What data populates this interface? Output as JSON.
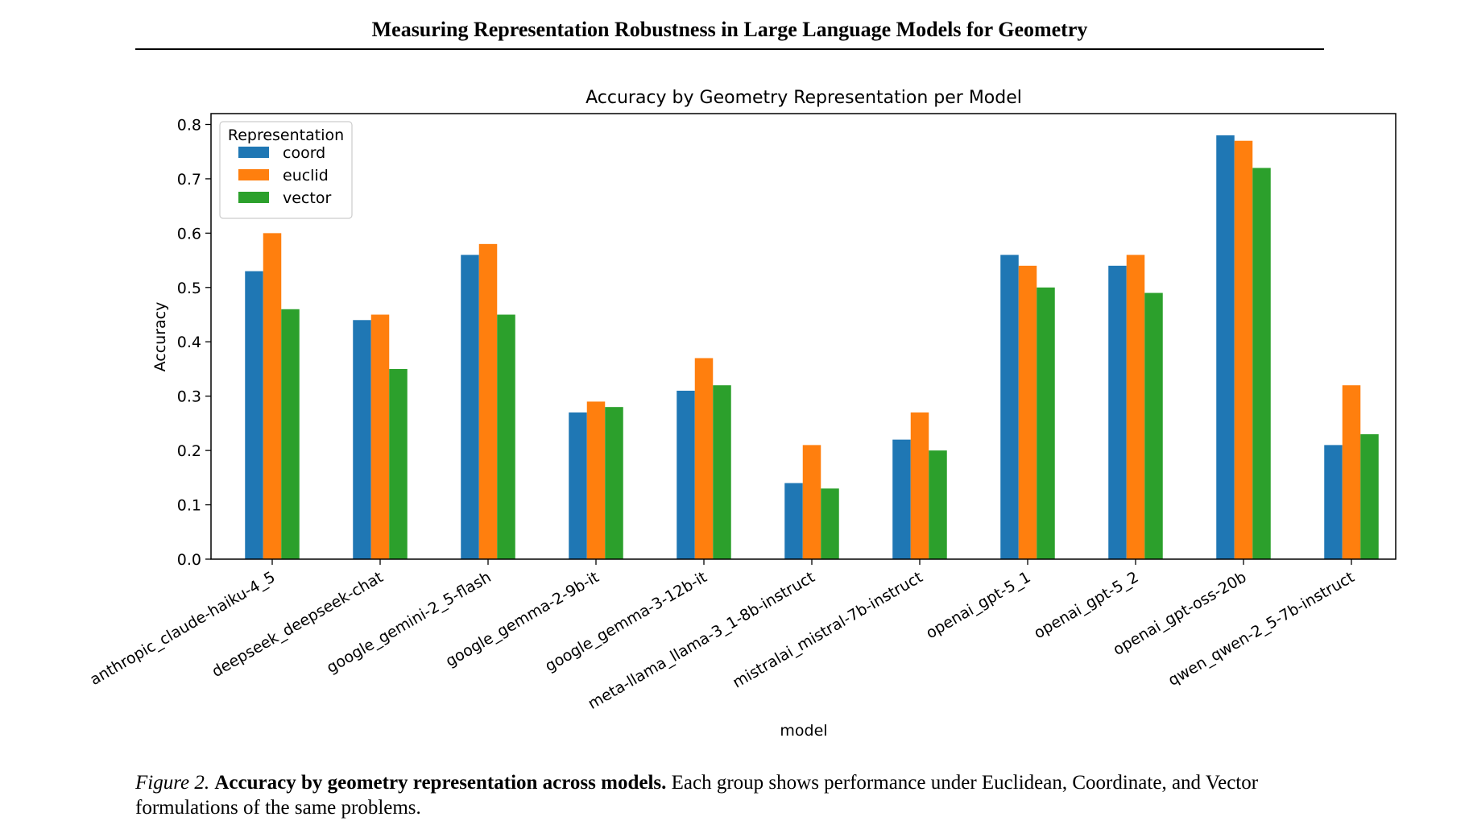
{
  "header": {
    "title": "Measuring Representation Robustness in Large Language Models for Geometry"
  },
  "caption": {
    "label": "Figure 2.",
    "title": "Accuracy by geometry representation across models.",
    "text": "Each group shows performance under Euclidean, Coordinate, and Vector formulations of the same problems."
  },
  "chart_data": {
    "type": "bar",
    "title": "Accuracy by Geometry Representation per Model",
    "xlabel": "model",
    "ylabel": "Accuracy",
    "ylim": [
      0,
      0.82
    ],
    "yticks": [
      "0.0",
      "0.1",
      "0.2",
      "0.3",
      "0.4",
      "0.5",
      "0.6",
      "0.7",
      "0.8"
    ],
    "grid": false,
    "legend": {
      "title": "Representation",
      "position": "top-left"
    },
    "categories": [
      "anthropic_claude-haiku-4_5",
      "deepseek_deepseek-chat",
      "google_gemini-2_5-flash",
      "google_gemma-2-9b-it",
      "google_gemma-3-12b-it",
      "meta-llama_llama-3_1-8b-instruct",
      "mistralai_mistral-7b-instruct",
      "openai_gpt-5_1",
      "openai_gpt-5_2",
      "openai_gpt-oss-20b",
      "qwen_qwen-2_5-7b-instruct"
    ],
    "series": [
      {
        "name": "coord",
        "color": "#1f77b4",
        "values": [
          0.53,
          0.44,
          0.56,
          0.27,
          0.31,
          0.14,
          0.22,
          0.56,
          0.54,
          0.78,
          0.21
        ]
      },
      {
        "name": "euclid",
        "color": "#ff7f0e",
        "values": [
          0.6,
          0.45,
          0.58,
          0.29,
          0.37,
          0.21,
          0.27,
          0.54,
          0.56,
          0.77,
          0.32
        ]
      },
      {
        "name": "vector",
        "color": "#2ca02c",
        "values": [
          0.46,
          0.35,
          0.45,
          0.28,
          0.32,
          0.13,
          0.2,
          0.5,
          0.49,
          0.72,
          0.23
        ]
      }
    ]
  }
}
